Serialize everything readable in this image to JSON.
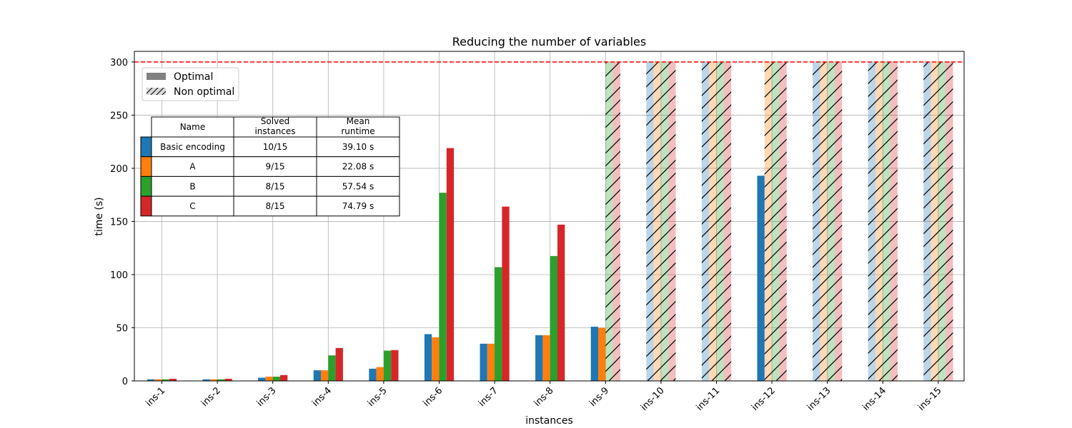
{
  "chart_data": {
    "type": "bar",
    "title": "Reducing the number of variables",
    "xlabel": "instances",
    "ylabel": "time (s)",
    "ylim": [
      0,
      310
    ],
    "yticks": [
      0,
      50,
      100,
      150,
      200,
      250,
      300
    ],
    "timeout_line": 300,
    "timeout_line_color": "#ff0000",
    "grid": true,
    "categories": [
      "ins-1",
      "ins-2",
      "ins-3",
      "ins-4",
      "ins-5",
      "ins-6",
      "ins-7",
      "ins-8",
      "ins-9",
      "ins-10",
      "ins-11",
      "ins-12",
      "ins-13",
      "ins-14",
      "ins-15"
    ],
    "series": [
      {
        "name": "Basic encoding",
        "color": "#1f77b4",
        "values": [
          1.5,
          1.5,
          3,
          10,
          11.5,
          44,
          35,
          43,
          51,
          300,
          300,
          193,
          300,
          300,
          300
        ],
        "optimal": [
          true,
          true,
          true,
          true,
          true,
          true,
          true,
          true,
          true,
          false,
          false,
          true,
          false,
          false,
          false
        ]
      },
      {
        "name": "A",
        "color": "#ff7f0e",
        "values": [
          1.5,
          1.5,
          4,
          10,
          13,
          41,
          35,
          43,
          50,
          300,
          300,
          300,
          300,
          300,
          300
        ],
        "optimal": [
          true,
          true,
          true,
          true,
          true,
          true,
          true,
          true,
          true,
          false,
          false,
          false,
          false,
          false,
          false
        ]
      },
      {
        "name": "B",
        "color": "#2ca02c",
        "values": [
          1.5,
          1.5,
          4,
          24,
          28.5,
          177,
          107,
          117.5,
          300,
          300,
          300,
          300,
          300,
          300,
          300
        ],
        "optimal": [
          true,
          true,
          true,
          true,
          true,
          true,
          true,
          true,
          false,
          false,
          false,
          false,
          false,
          false,
          false
        ]
      },
      {
        "name": "C",
        "color": "#d62728",
        "values": [
          2,
          2,
          5.5,
          31,
          29,
          219,
          164,
          147,
          300,
          300,
          300,
          300,
          300,
          300,
          300
        ],
        "optimal": [
          true,
          true,
          true,
          true,
          true,
          true,
          true,
          true,
          false,
          false,
          false,
          false,
          false,
          false,
          false
        ]
      }
    ],
    "legend": {
      "position": "top-left",
      "entries": [
        "Optimal",
        "Non optimal"
      ]
    },
    "summary_table": {
      "headers": [
        "Name",
        "Solved\ninstances",
        "Mean\nruntime"
      ],
      "rows": [
        {
          "name": "Basic encoding",
          "solved": "10/15",
          "runtime": "39.10 s",
          "color": "#1f77b4"
        },
        {
          "name": "A",
          "solved": "9/15",
          "runtime": "22.08 s",
          "color": "#ff7f0e"
        },
        {
          "name": "B",
          "solved": "8/15",
          "runtime": "57.54 s",
          "color": "#2ca02c"
        },
        {
          "name": "C",
          "solved": "8/15",
          "runtime": "74.79 s",
          "color": "#d62728"
        }
      ]
    }
  }
}
